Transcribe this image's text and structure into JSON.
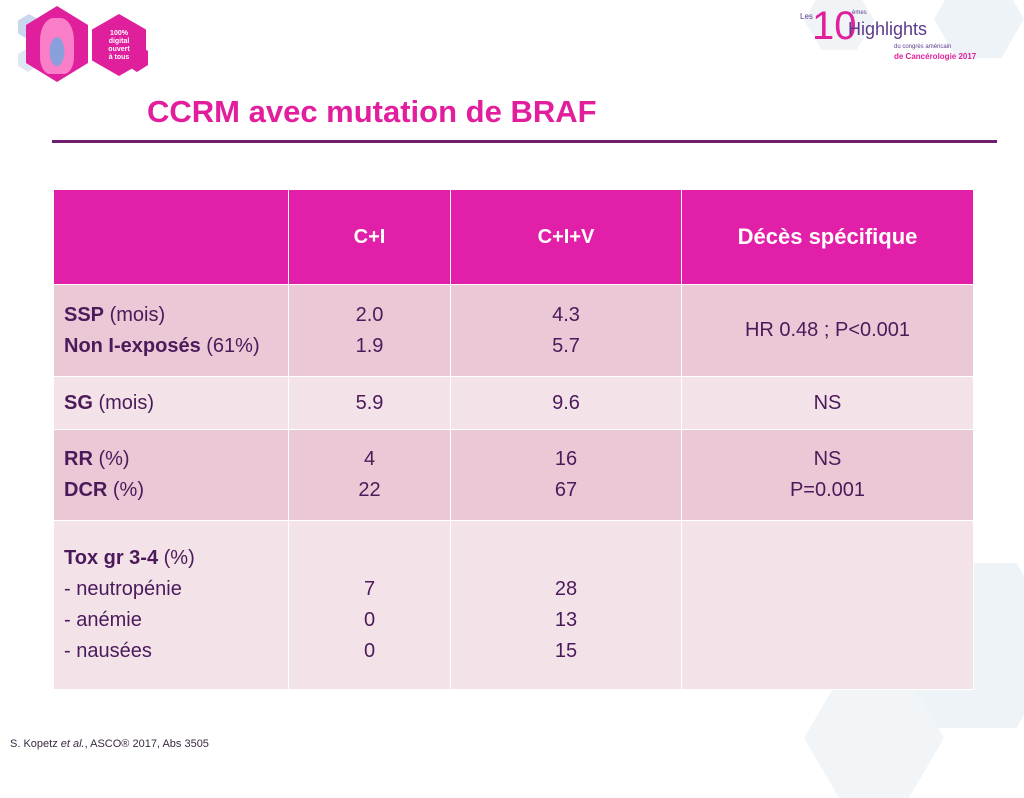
{
  "header": {
    "logo_left": {
      "badge_lines": [
        "100%",
        "digital",
        "ouvert",
        "à tous"
      ]
    },
    "logo_right": {
      "les": "Les",
      "ten": "10",
      "emes": "èmes",
      "highlights": "Highlights",
      "sub_line1": "du congrès américain",
      "sub_line2": "de Cancérologie 2017"
    }
  },
  "title": "CCRM avec mutation de BRAF",
  "table": {
    "headers": [
      "",
      "C+I",
      "C+I+V",
      "Décès spécifique"
    ],
    "rows": [
      {
        "label_lines": [
          {
            "bold": "SSP",
            "rest": " (mois)"
          },
          {
            "bold": "Non I-exposés",
            "rest": " (61%)"
          }
        ],
        "ci": [
          "2.0",
          "1.9"
        ],
        "civ": [
          "4.3",
          "5.7"
        ],
        "deces": [
          "HR 0.48 ; P<0.001"
        ]
      },
      {
        "label_lines": [
          {
            "bold": "SG",
            "rest": " (mois)"
          }
        ],
        "ci": [
          "5.9"
        ],
        "civ": [
          "9.6"
        ],
        "deces": [
          "NS"
        ]
      },
      {
        "label_lines": [
          {
            "bold": "RR",
            "rest": " (%)"
          },
          {
            "bold": "DCR",
            "rest": " (%)"
          }
        ],
        "ci": [
          "4",
          "22"
        ],
        "civ": [
          "16",
          "67"
        ],
        "deces": [
          "NS",
          "P=0.001"
        ]
      },
      {
        "label_lines": [
          {
            "bold": "Tox gr 3-4",
            "rest": " (%)"
          },
          {
            "bold": "",
            "rest": "- neutropénie"
          },
          {
            "bold": "",
            "rest": "- anémie"
          },
          {
            "bold": "",
            "rest": "- nausées"
          }
        ],
        "ci": [
          "",
          "7",
          "0",
          "0"
        ],
        "civ": [
          "",
          "28",
          "13",
          "15"
        ],
        "deces": []
      }
    ]
  },
  "footnote": {
    "author": "S. Kopetz ",
    "etal": "et al.",
    "rest": ", ASCO® 2017, Abs 3505"
  }
}
